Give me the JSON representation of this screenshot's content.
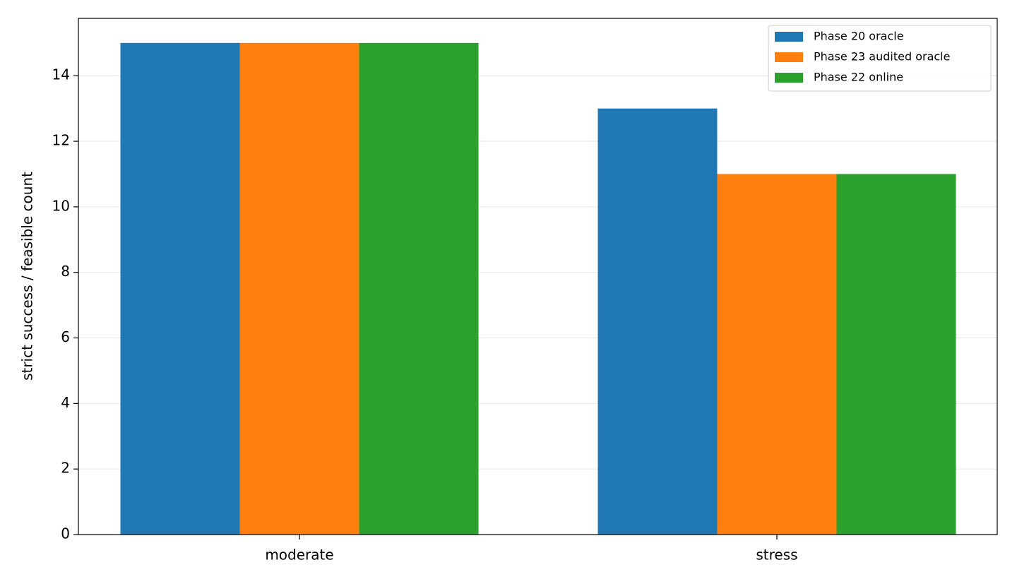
{
  "chart_data": {
    "type": "bar",
    "y_label": "strict success / feasible count",
    "categories": [
      "moderate",
      "stress"
    ],
    "series": [
      {
        "name": "Phase 20 oracle",
        "color": "#1f77b4",
        "values": [
          15,
          13
        ]
      },
      {
        "name": "Phase 23 audited oracle",
        "color": "#ff7f0e",
        "values": [
          15,
          11
        ]
      },
      {
        "name": "Phase 22 online",
        "color": "#2ca02c",
        "values": [
          15,
          11
        ]
      }
    ],
    "ylim": [
      0,
      15.75
    ],
    "yticks": [
      0,
      2,
      4,
      6,
      8,
      10,
      12,
      14
    ],
    "grid": true,
    "legend": "upper right"
  }
}
